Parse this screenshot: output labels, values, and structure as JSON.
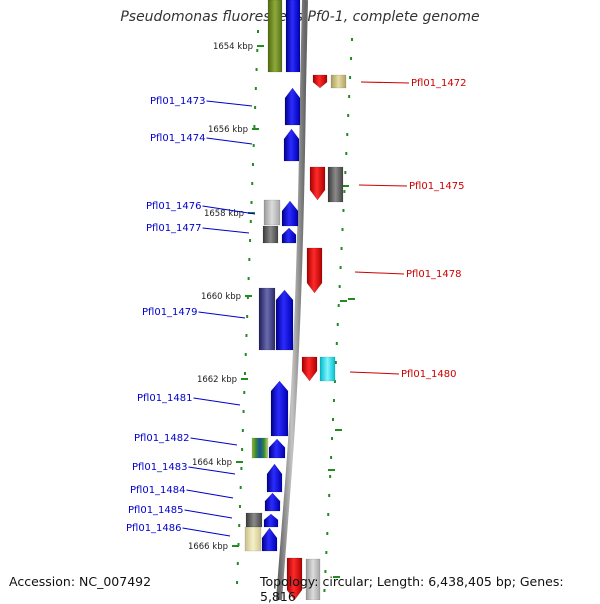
{
  "title": "Pseudomonas fluorescens Pf0-1, complete genome",
  "footer": {
    "accession": "Accession: NC_007492",
    "topology": "Topology: circular; Length: 6,438,405 bp; Genes: 5,816"
  },
  "colors": {
    "forward_label": "#0000cc",
    "reverse_label": "#cc0000",
    "backbone": "#888888",
    "tick": "#228b22"
  },
  "kbp_marks": [
    {
      "label": "1654 kbp"
    },
    {
      "label": "1656 kbp"
    },
    {
      "label": "1658 kbp"
    },
    {
      "label": "1660 kbp"
    },
    {
      "label": "1662 kbp"
    },
    {
      "label": "1664 kbp"
    },
    {
      "label": "1666 kbp"
    }
  ],
  "genes_left": [
    {
      "label": "Pfl01_1473"
    },
    {
      "label": "Pfl01_1474"
    },
    {
      "label": "Pfl01_1476"
    },
    {
      "label": "Pfl01_1477"
    },
    {
      "label": "Pfl01_1479"
    },
    {
      "label": "Pfl01_1481"
    },
    {
      "label": "Pfl01_1482"
    },
    {
      "label": "Pfl01_1483"
    },
    {
      "label": "Pfl01_1484"
    },
    {
      "label": "Pfl01_1485"
    },
    {
      "label": "Pfl01_1486"
    }
  ],
  "genes_right": [
    {
      "label": "Pfl01_1472"
    },
    {
      "label": "Pfl01_1475"
    },
    {
      "label": "Pfl01_1478"
    },
    {
      "label": "Pfl01_1480"
    }
  ]
}
